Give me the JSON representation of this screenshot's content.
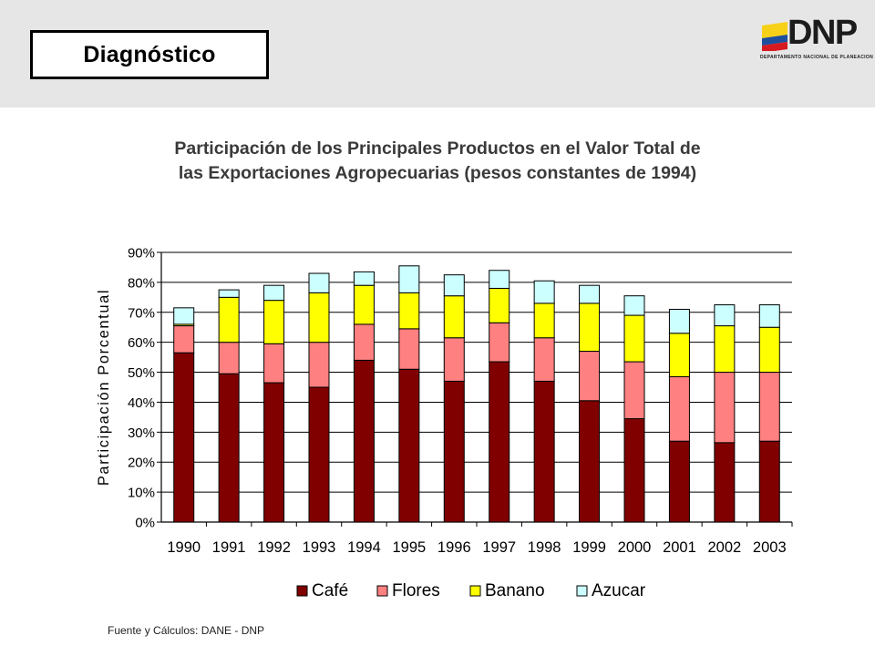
{
  "header": {
    "section_title": "Diagnóstico",
    "logo_text": "DNP",
    "logo_subtitle": "DEPARTAMENTO NACIONAL DE PLANEACION",
    "logo_flag_colors": [
      "#f7d117",
      "#1d4f9c",
      "#d71920"
    ]
  },
  "chart_data": {
    "type": "bar",
    "stacked": true,
    "title": "Participación de los Principales Productos en el Valor Total de las Exportaciones Agropecuarias (pesos constantes de 1994)",
    "title_lines": [
      "Participación de los Principales Productos en el Valor Total de",
      "las Exportaciones Agropecuarias (pesos constantes de 1994)"
    ],
    "xlabel": "",
    "ylabel": "Participación Porcentual",
    "ylim": [
      0,
      90
    ],
    "yticks": [
      0,
      10,
      20,
      30,
      40,
      50,
      60,
      70,
      80,
      90
    ],
    "ytick_labels": [
      "0%",
      "10%",
      "20%",
      "30%",
      "40%",
      "50%",
      "60%",
      "70%",
      "80%",
      "90%"
    ],
    "grid": true,
    "legend_position": "bottom",
    "categories": [
      "1990",
      "1991",
      "1992",
      "1993",
      "1994",
      "1995",
      "1996",
      "1997",
      "1998",
      "1999",
      "2000",
      "2001",
      "2002",
      "2003"
    ],
    "series": [
      {
        "name": "Café",
        "color": "#800000",
        "values": [
          56.5,
          49.5,
          46.5,
          45.0,
          54.0,
          51.0,
          47.0,
          53.5,
          47.0,
          40.5,
          34.5,
          27.0,
          26.5,
          27.0
        ]
      },
      {
        "name": "Flores",
        "color": "#ff8080",
        "values": [
          9.0,
          10.5,
          13.0,
          15.0,
          12.0,
          13.5,
          14.5,
          13.0,
          14.5,
          16.5,
          19.0,
          21.5,
          23.5,
          23.0
        ]
      },
      {
        "name": "Banano",
        "color": "#ffff00",
        "values": [
          0.5,
          15.0,
          14.5,
          16.5,
          13.0,
          12.0,
          14.0,
          11.5,
          11.5,
          16.0,
          15.5,
          14.5,
          15.5,
          15.0
        ]
      },
      {
        "name": "Azucar",
        "color": "#ccffff",
        "values": [
          5.5,
          2.5,
          5.0,
          6.5,
          4.5,
          9.0,
          7.0,
          6.0,
          7.5,
          6.0,
          6.5,
          8.0,
          7.0,
          7.5
        ]
      }
    ]
  },
  "footer": {
    "source": "Fuente y Cálculos: DANE - DNP"
  }
}
